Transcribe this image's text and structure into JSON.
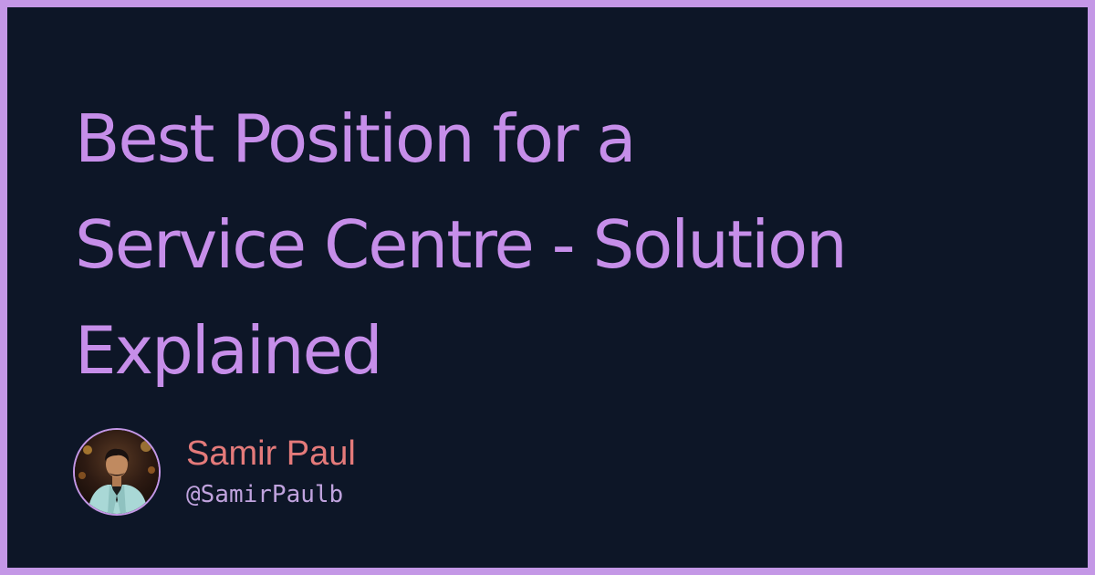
{
  "card": {
    "title_lines": [
      "Best Position for a",
      "Service Centre - Solution",
      "Explained"
    ],
    "author": {
      "name": "Samir Paul",
      "handle": "@SamirPaulb"
    }
  },
  "colors": {
    "border": "#c497e6",
    "background": "#0d1627",
    "title": "#c68ee9",
    "author_name": "#e47a7a",
    "author_handle": "#c0a3de"
  },
  "icons": {
    "avatar": "author-avatar-photo"
  }
}
